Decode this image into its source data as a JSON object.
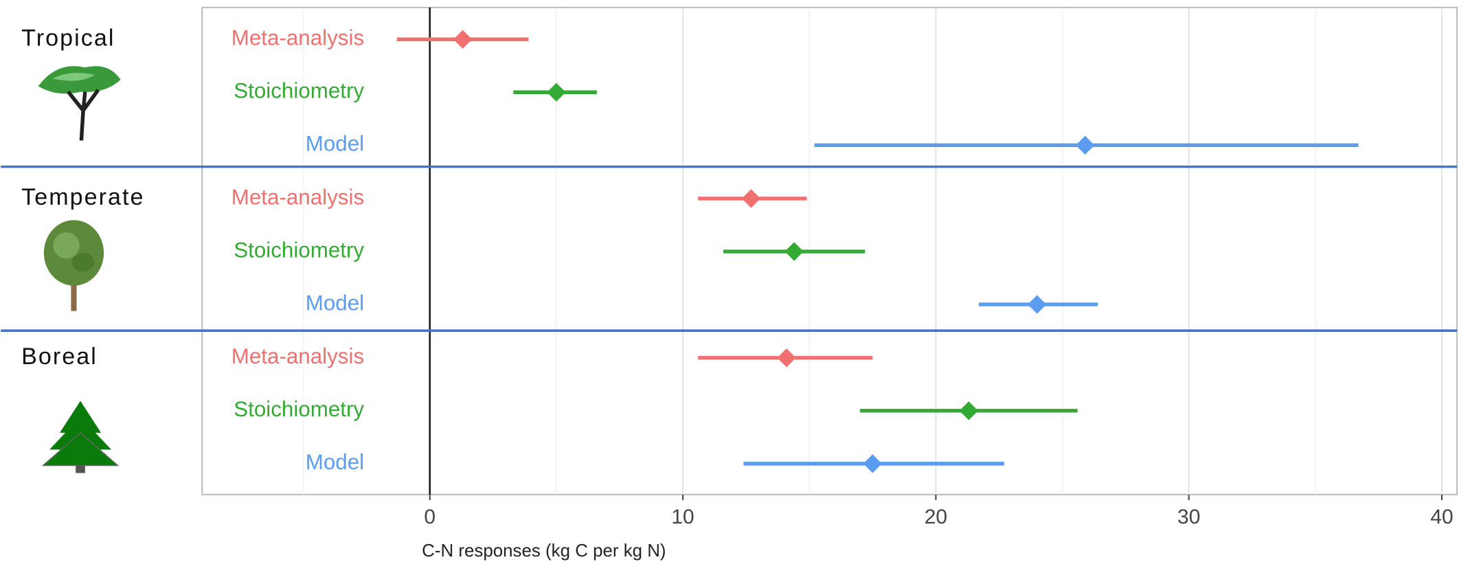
{
  "chart_data": {
    "type": "forest",
    "xlabel": "C-N responses (kg C per kg N)",
    "categories": [
      "Tropical",
      "Temperate",
      "Boreal"
    ],
    "series": [
      {
        "name": "Meta-analysis",
        "color": "#f07070",
        "values": [
          1.3,
          12.7,
          14.1
        ],
        "lower": [
          -1.3,
          10.6,
          10.6
        ],
        "upper": [
          3.9,
          14.9,
          17.5
        ]
      },
      {
        "name": "Stoichiometry",
        "color": "#33aa33",
        "values": [
          5.0,
          14.4,
          21.3
        ],
        "lower": [
          3.3,
          11.6,
          17.0
        ],
        "upper": [
          6.6,
          17.2,
          25.6
        ]
      },
      {
        "name": "Model",
        "color": "#5b9cf0",
        "values": [
          25.9,
          24.0,
          17.5
        ],
        "lower": [
          15.2,
          21.7,
          12.4
        ],
        "upper": [
          36.7,
          26.4,
          22.7
        ]
      }
    ],
    "xlim": [
      -9,
      40.6
    ],
    "xticks": [
      0,
      10,
      20,
      30,
      40
    ],
    "xminor": [
      -5,
      5,
      15,
      25,
      35
    ],
    "grid": true
  }
}
